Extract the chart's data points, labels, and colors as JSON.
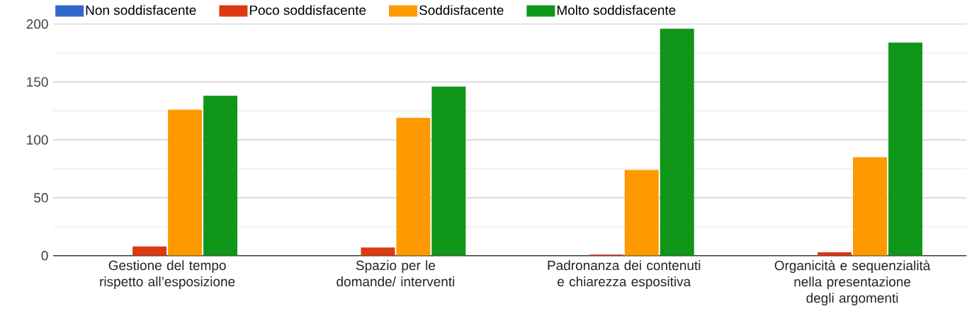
{
  "chart_data": {
    "type": "bar",
    "categories": [
      "Gestione del tempo rispetto all’esposizione",
      "Spazio per le domande/ interventi",
      "Padronanza dei contenuti e chiarezza espositiva",
      "Organicità e sequenzialità nella presentazione degli argomenti"
    ],
    "series": [
      {
        "name": "Non soddisfacente",
        "color": "#3366cc",
        "values": [
          0,
          0,
          0,
          0
        ]
      },
      {
        "name": "Poco soddisfacente",
        "color": "#dc3912",
        "values": [
          8,
          7,
          1,
          3
        ]
      },
      {
        "name": "Soddisfacente",
        "color": "#ff9900",
        "values": [
          126,
          119,
          74,
          85
        ]
      },
      {
        "name": "Molto soddisfacente",
        "color": "#109618",
        "values": [
          138,
          146,
          196,
          184
        ]
      }
    ],
    "ylim": [
      0,
      200
    ],
    "yticks": [
      0,
      50,
      100,
      150,
      200
    ],
    "grid": "y",
    "legend": "top"
  }
}
